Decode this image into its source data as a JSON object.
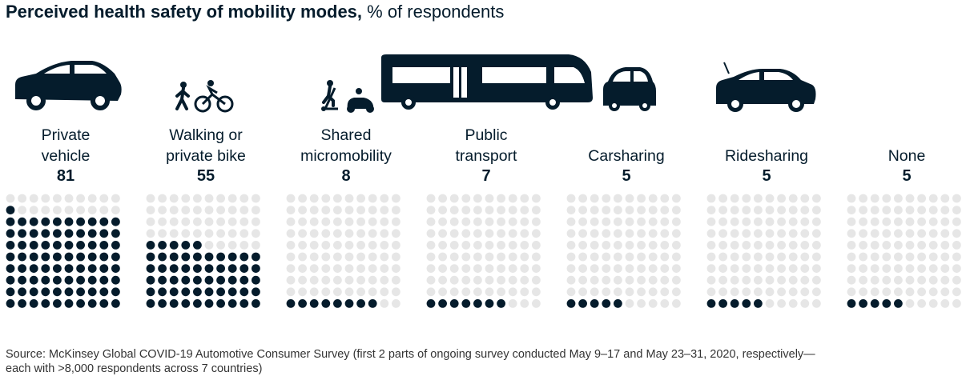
{
  "title_bold": "Perceived health safety of mobility modes,",
  "title_rest": " % of respondents",
  "source_line1": "Source: McKinsey Global COVID-19 Automotive Consumer Survey (first 2 parts of ongoing survey conducted May 9–17 and May 23–31, 2020, respectively—",
  "source_line2": "each with >8,000 respondents across 7 countries)",
  "colors": {
    "filled": "#051c2c",
    "empty": "#e6e6e6"
  },
  "icons": [
    "car-icon",
    "walker-cyclist-icon",
    "scooter-icon",
    "bus-icon",
    "small-car-icon",
    "sedan-icon"
  ],
  "chart_data": {
    "type": "waffle",
    "grid": "10x10",
    "categories": [
      {
        "line1": "Private",
        "line2": "vehicle",
        "value": 81
      },
      {
        "line1": "Walking or",
        "line2": "private bike",
        "value": 55
      },
      {
        "line1": "Shared",
        "line2": "micromobility",
        "value": 8
      },
      {
        "line1": "Public",
        "line2": "transport",
        "value": 7
      },
      {
        "line1": "",
        "line2": "Carsharing",
        "value": 5
      },
      {
        "line1": "",
        "line2": "Ridesharing",
        "value": 5
      },
      {
        "line1": "",
        "line2": "None",
        "value": 5
      }
    ]
  }
}
